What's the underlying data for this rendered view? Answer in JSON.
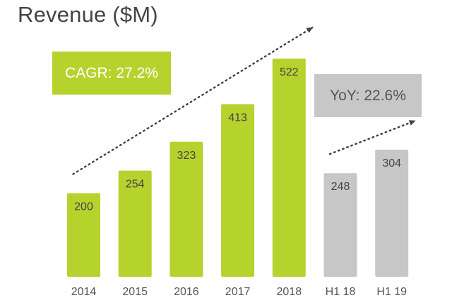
{
  "chart_data": {
    "type": "bar",
    "title": "Revenue ($M)",
    "categories": [
      "2014",
      "2015",
      "2016",
      "2017",
      "2018",
      "H1 18",
      "H1 19"
    ],
    "values": [
      200,
      254,
      323,
      413,
      522,
      248,
      304
    ],
    "xlabel": "",
    "ylabel": "",
    "ylim": [
      0,
      620
    ],
    "grid": false,
    "legend": "none",
    "data_labels": true,
    "colors": {
      "annual": "#b6d22d",
      "half_year": "#c7c7c7",
      "label_text": "#444444",
      "tick_text": "#555555",
      "arrow": "#444444"
    },
    "bar_groups": [
      "annual",
      "annual",
      "annual",
      "annual",
      "annual",
      "half_year",
      "half_year"
    ],
    "annotations": [
      {
        "text": "CAGR: 27.2%",
        "fill": "#b6d22d",
        "spans": [
          "2014",
          "2018"
        ],
        "arrow": "dotted-upward"
      },
      {
        "text": "YoY: 22.6%",
        "fill": "#c7c7c7",
        "spans": [
          "H1 18",
          "H1 19"
        ],
        "arrow": "dotted-upward"
      }
    ]
  }
}
